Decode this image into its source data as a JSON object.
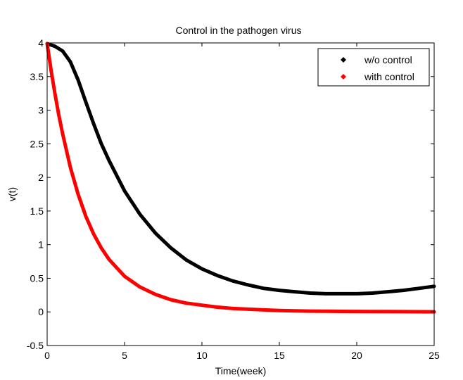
{
  "chart_data": {
    "type": "line",
    "title": "Control in the pathogen virus",
    "xlabel": "Time(week)",
    "ylabel": "v(t)",
    "xlim": [
      0,
      25
    ],
    "ylim": [
      -0.5,
      4
    ],
    "xticks": [
      0,
      5,
      10,
      15,
      20,
      25
    ],
    "xtick_labels": [
      "0",
      "5",
      "10",
      "15",
      "20",
      "25"
    ],
    "yticks": [
      -0.5,
      0,
      0.5,
      1,
      1.5,
      2,
      2.5,
      3,
      3.5,
      4
    ],
    "ytick_labels": [
      "-0.5",
      "0",
      "0.5",
      "1",
      "1.5",
      "2",
      "2.5",
      "3",
      "3.5",
      "4"
    ],
    "grid": false,
    "legend_position": "top-right",
    "series": [
      {
        "name": "w/o control",
        "color": "#000000",
        "x": [
          0,
          0.5,
          1,
          1.5,
          2,
          2.5,
          3,
          3.5,
          4,
          5,
          6,
          7,
          8,
          9,
          10,
          11,
          12,
          13,
          14,
          15,
          16,
          17,
          18,
          19,
          20,
          21,
          22,
          23,
          24,
          25
        ],
        "y": [
          3.99,
          3.95,
          3.88,
          3.72,
          3.45,
          3.12,
          2.8,
          2.5,
          2.25,
          1.8,
          1.45,
          1.17,
          0.95,
          0.77,
          0.64,
          0.54,
          0.46,
          0.4,
          0.35,
          0.32,
          0.3,
          0.28,
          0.27,
          0.27,
          0.27,
          0.28,
          0.3,
          0.32,
          0.35,
          0.38
        ]
      },
      {
        "name": "with control",
        "color": "#ff0000",
        "x": [
          0,
          0.25,
          0.5,
          0.75,
          1,
          1.5,
          2,
          2.5,
          3,
          3.5,
          4,
          5,
          6,
          7,
          8,
          9,
          10,
          11,
          12,
          13,
          14,
          15,
          16,
          17,
          18,
          19,
          20,
          21,
          22,
          23,
          24,
          25
        ],
        "y": [
          3.99,
          3.6,
          3.25,
          2.93,
          2.65,
          2.15,
          1.75,
          1.42,
          1.16,
          0.95,
          0.78,
          0.53,
          0.37,
          0.26,
          0.18,
          0.13,
          0.1,
          0.07,
          0.05,
          0.04,
          0.03,
          0.02,
          0.015,
          0.012,
          0.01,
          0.008,
          0.006,
          0.005,
          0.004,
          0.003,
          0.002,
          0.001
        ]
      }
    ]
  }
}
